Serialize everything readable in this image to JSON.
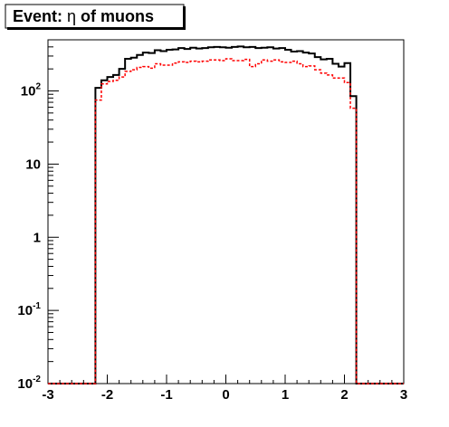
{
  "chart_data": {
    "type": "histogram",
    "title": "Event: η of muons",
    "title_box": {
      "text": "Event: ",
      "symbol": "η",
      "rest": " of muons"
    },
    "xlabel": "",
    "ylabel": "",
    "xlim": [
      -3,
      3
    ],
    "ylim": [
      0.01,
      500
    ],
    "y_scale": "log",
    "grid": false,
    "legend": "none",
    "x_ticks": [
      {
        "value": -3,
        "label": "-3"
      },
      {
        "value": -2,
        "label": "-2"
      },
      {
        "value": -1,
        "label": "-1"
      },
      {
        "value": 0,
        "label": "0"
      },
      {
        "value": 1,
        "label": "1"
      },
      {
        "value": 2,
        "label": "2"
      },
      {
        "value": 3,
        "label": "3"
      }
    ],
    "y_ticks": [
      {
        "value": 0.01,
        "base": "10",
        "exp": "-2"
      },
      {
        "value": 0.1,
        "base": "10",
        "exp": "-1"
      },
      {
        "value": 1,
        "base": "1",
        "exp": ""
      },
      {
        "value": 10,
        "base": "10",
        "exp": ""
      },
      {
        "value": 100,
        "base": "10",
        "exp": "2"
      }
    ],
    "bin_edges_start": -2.2,
    "bin_width": 0.1,
    "floor_value": 0.01,
    "series": [
      {
        "style": "solid",
        "color": "#000000",
        "values": [
          110,
          140,
          155,
          165,
          200,
          275,
          285,
          310,
          335,
          330,
          360,
          350,
          365,
          370,
          385,
          375,
          390,
          380,
          385,
          395,
          400,
          395,
          390,
          400,
          405,
          395,
          400,
          385,
          390,
          395,
          380,
          385,
          365,
          345,
          350,
          335,
          325,
          290,
          270,
          275,
          235,
          215,
          240,
          85
        ]
      },
      {
        "style": "dashed",
        "color": "#ff0000",
        "values": [
          75,
          125,
          135,
          140,
          155,
          185,
          195,
          210,
          215,
          205,
          235,
          225,
          225,
          240,
          250,
          245,
          255,
          250,
          255,
          265,
          265,
          260,
          275,
          260,
          260,
          270,
          215,
          235,
          265,
          255,
          265,
          250,
          245,
          255,
          235,
          215,
          220,
          195,
          175,
          165,
          150,
          150,
          130,
          58
        ]
      }
    ],
    "colors": {
      "frame": "#000000",
      "series_main": "#000000",
      "series_red": "#ff0000",
      "background": "#ffffff"
    }
  }
}
